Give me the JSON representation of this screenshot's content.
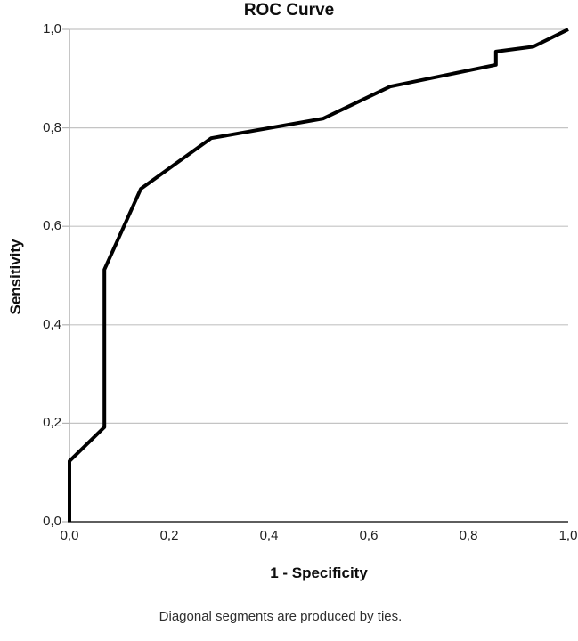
{
  "figure": {
    "background": "#ffffff"
  },
  "chart_data": {
    "type": "line",
    "title": "ROC Curve",
    "xlabel": "1 - Specificity",
    "ylabel": "Sensitivity",
    "footnote": "Diagonal segments are produced by ties.",
    "xlim": [
      0,
      1
    ],
    "ylim": [
      0,
      1
    ],
    "decimal_separator": ",",
    "grid": {
      "horizontal": true,
      "vertical": false,
      "color": "#c4c4c4"
    },
    "axis_colors": {
      "x_axis": "#474747",
      "y_axis": "#b4b4b4"
    },
    "x_ticks": [
      {
        "value": 0.0,
        "label": "0,0"
      },
      {
        "value": 0.2,
        "label": "0,2"
      },
      {
        "value": 0.4,
        "label": "0,4"
      },
      {
        "value": 0.6,
        "label": "0,6"
      },
      {
        "value": 0.8,
        "label": "0,8"
      },
      {
        "value": 1.0,
        "label": "1,0"
      }
    ],
    "y_ticks": [
      {
        "value": 0.0,
        "label": "0,0"
      },
      {
        "value": 0.2,
        "label": "0,2"
      },
      {
        "value": 0.4,
        "label": "0,4"
      },
      {
        "value": 0.6,
        "label": "0,6"
      },
      {
        "value": 0.8,
        "label": "0,8"
      },
      {
        "value": 1.0,
        "label": "1,0"
      }
    ],
    "series": [
      {
        "name": "ROC curve",
        "color": "#000000",
        "line_width": 4,
        "points": [
          [
            0.0,
            0.0
          ],
          [
            0.0,
            0.123
          ],
          [
            0.07,
            0.192
          ],
          [
            0.07,
            0.512
          ],
          [
            0.143,
            0.676
          ],
          [
            0.284,
            0.779
          ],
          [
            0.509,
            0.819
          ],
          [
            0.643,
            0.884
          ],
          [
            0.855,
            0.928
          ],
          [
            0.855,
            0.955
          ],
          [
            0.93,
            0.965
          ],
          [
            1.0,
            1.0
          ]
        ]
      }
    ]
  }
}
